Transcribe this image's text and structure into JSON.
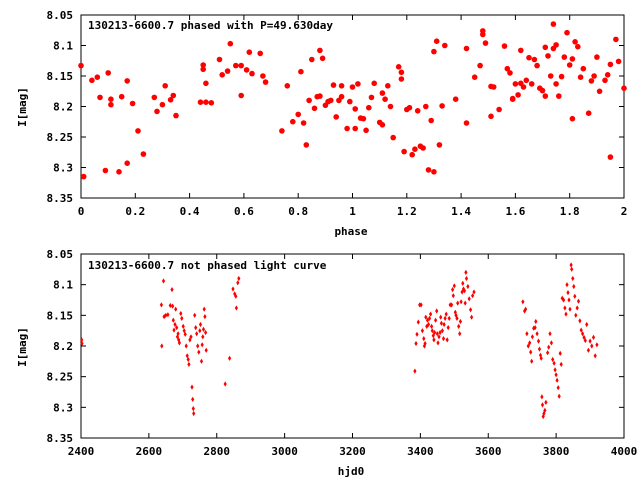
{
  "marker_color": "#ff0000",
  "chart_data": [
    {
      "type": "scatter",
      "title": "130213-6600.7 phased with P=49.630day",
      "xlabel": "phase",
      "ylabel": "I[mag]",
      "xlim": [
        0,
        2
      ],
      "ylim": [
        8.35,
        8.05
      ],
      "y_inverted": true,
      "xticks": [
        "0",
        "0.2",
        "0.4",
        "0.6",
        "0.8",
        "1",
        "1.2",
        "1.4",
        "1.6",
        "1.8",
        "2"
      ],
      "yticks": [
        "8.05",
        "8.1",
        "8.15",
        "8.2",
        "8.25",
        "8.3",
        "8.35"
      ],
      "marker": "filled-circle",
      "grid": false,
      "points": [
        [
          0.0,
          8.133
        ],
        [
          0.01,
          8.315
        ],
        [
          0.04,
          8.157
        ],
        [
          0.06,
          8.152
        ],
        [
          0.07,
          8.185
        ],
        [
          0.09,
          8.305
        ],
        [
          0.1,
          8.145
        ],
        [
          0.11,
          8.188
        ],
        [
          0.11,
          8.197
        ],
        [
          0.14,
          8.307
        ],
        [
          0.15,
          8.184
        ],
        [
          0.17,
          8.158
        ],
        [
          0.17,
          8.293
        ],
        [
          0.19,
          8.195
        ],
        [
          0.21,
          8.24
        ],
        [
          0.23,
          8.278
        ],
        [
          0.27,
          8.185
        ],
        [
          0.28,
          8.208
        ],
        [
          0.3,
          8.197
        ],
        [
          0.31,
          8.166
        ],
        [
          0.33,
          8.189
        ],
        [
          0.34,
          8.182
        ],
        [
          0.35,
          8.215
        ],
        [
          0.44,
          8.193
        ],
        [
          0.45,
          8.139
        ],
        [
          0.45,
          8.132
        ],
        [
          0.46,
          8.162
        ],
        [
          0.46,
          8.193
        ],
        [
          0.48,
          8.194
        ],
        [
          0.51,
          8.123
        ],
        [
          0.52,
          8.148
        ],
        [
          0.54,
          8.142
        ],
        [
          0.55,
          8.097
        ],
        [
          0.57,
          8.133
        ],
        [
          0.59,
          8.133
        ],
        [
          0.59,
          8.182
        ],
        [
          0.61,
          8.14
        ],
        [
          0.62,
          8.111
        ],
        [
          0.63,
          8.146
        ],
        [
          0.66,
          8.113
        ],
        [
          0.67,
          8.15
        ],
        [
          0.68,
          8.16
        ],
        [
          0.74,
          8.24
        ],
        [
          0.76,
          8.166
        ],
        [
          0.78,
          8.225
        ],
        [
          0.8,
          8.213
        ],
        [
          0.81,
          8.143
        ],
        [
          0.82,
          8.227
        ],
        [
          0.83,
          8.263
        ],
        [
          0.84,
          8.19
        ],
        [
          0.85,
          8.123
        ],
        [
          0.86,
          8.203
        ],
        [
          0.87,
          8.184
        ],
        [
          0.88,
          8.183
        ],
        [
          0.88,
          8.108
        ],
        [
          0.89,
          8.121
        ],
        [
          0.9,
          8.198
        ],
        [
          0.91,
          8.192
        ],
        [
          0.92,
          8.19
        ],
        [
          0.93,
          8.165
        ],
        [
          0.94,
          8.217
        ],
        [
          0.95,
          8.19
        ],
        [
          0.96,
          8.184
        ],
        [
          0.96,
          8.166
        ],
        [
          0.98,
          8.236
        ],
        [
          0.99,
          8.192
        ],
        [
          1.0,
          8.168
        ],
        [
          1.01,
          8.204
        ],
        [
          1.01,
          8.236
        ],
        [
          1.02,
          8.163
        ],
        [
          1.03,
          8.219
        ],
        [
          1.04,
          8.22
        ],
        [
          1.05,
          8.239
        ],
        [
          1.06,
          8.202
        ],
        [
          1.07,
          8.185
        ],
        [
          1.08,
          8.162
        ],
        [
          1.1,
          8.226
        ],
        [
          1.11,
          8.23
        ],
        [
          1.11,
          8.178
        ],
        [
          1.12,
          8.188
        ],
        [
          1.13,
          8.166
        ],
        [
          1.14,
          8.2
        ],
        [
          1.15,
          8.251
        ],
        [
          1.17,
          8.135
        ],
        [
          1.18,
          8.155
        ],
        [
          1.18,
          8.144
        ],
        [
          1.19,
          8.274
        ],
        [
          1.2,
          8.205
        ],
        [
          1.21,
          8.202
        ],
        [
          1.22,
          8.279
        ],
        [
          1.23,
          8.27
        ],
        [
          1.24,
          8.207
        ],
        [
          1.25,
          8.265
        ],
        [
          1.26,
          8.268
        ],
        [
          1.27,
          8.2
        ],
        [
          1.28,
          8.304
        ],
        [
          1.29,
          8.223
        ],
        [
          1.3,
          8.307
        ],
        [
          1.3,
          8.11
        ],
        [
          1.31,
          8.093
        ],
        [
          1.32,
          8.263
        ],
        [
          1.33,
          8.199
        ],
        [
          1.34,
          8.1
        ],
        [
          1.38,
          8.188
        ],
        [
          1.42,
          8.105
        ],
        [
          1.42,
          8.227
        ],
        [
          1.45,
          8.152
        ],
        [
          1.47,
          8.133
        ],
        [
          1.48,
          8.076
        ],
        [
          1.48,
          8.082
        ],
        [
          1.49,
          8.096
        ],
        [
          1.51,
          8.216
        ],
        [
          1.51,
          8.167
        ],
        [
          1.52,
          8.168
        ],
        [
          1.54,
          8.205
        ],
        [
          1.56,
          8.101
        ],
        [
          1.57,
          8.138
        ],
        [
          1.58,
          8.145
        ],
        [
          1.59,
          8.187
        ],
        [
          1.59,
          8.188
        ],
        [
          1.6,
          8.163
        ],
        [
          1.61,
          8.181
        ],
        [
          1.62,
          8.162
        ],
        [
          1.62,
          8.108
        ],
        [
          1.63,
          8.168
        ],
        [
          1.64,
          8.157
        ],
        [
          1.65,
          8.12
        ],
        [
          1.66,
          8.163
        ],
        [
          1.67,
          8.123
        ],
        [
          1.68,
          8.133
        ],
        [
          1.69,
          8.17
        ],
        [
          1.7,
          8.174
        ],
        [
          1.71,
          8.183
        ],
        [
          1.71,
          8.103
        ],
        [
          1.72,
          8.117
        ],
        [
          1.73,
          8.15
        ],
        [
          1.74,
          8.105
        ],
        [
          1.74,
          8.065
        ],
        [
          1.75,
          8.099
        ],
        [
          1.75,
          8.163
        ],
        [
          1.76,
          8.183
        ],
        [
          1.77,
          8.151
        ],
        [
          1.78,
          8.119
        ],
        [
          1.79,
          8.079
        ],
        [
          1.8,
          8.132
        ],
        [
          1.81,
          8.22
        ],
        [
          1.81,
          8.122
        ],
        [
          1.82,
          8.094
        ],
        [
          1.83,
          8.102
        ],
        [
          1.84,
          8.152
        ],
        [
          1.85,
          8.138
        ],
        [
          1.87,
          8.211
        ],
        [
          1.88,
          8.158
        ],
        [
          1.89,
          8.15
        ],
        [
          1.9,
          8.119
        ],
        [
          1.91,
          8.175
        ],
        [
          1.93,
          8.157
        ],
        [
          1.94,
          8.148
        ],
        [
          1.95,
          8.131
        ],
        [
          1.95,
          8.283
        ],
        [
          1.97,
          8.09
        ],
        [
          1.98,
          8.126
        ],
        [
          2.0,
          8.17
        ]
      ]
    },
    {
      "type": "scatter",
      "title": "130213-6600.7 not phased light curve",
      "xlabel": "hjd0",
      "ylabel": "I[mag]",
      "xlim": [
        2400,
        4000
      ],
      "ylim": [
        8.35,
        8.05
      ],
      "y_inverted": true,
      "xticks": [
        "2400",
        "2600",
        "2800",
        "3000",
        "3200",
        "3400",
        "3600",
        "3800",
        "4000"
      ],
      "yticks": [
        "8.05",
        "8.1",
        "8.15",
        "8.2",
        "8.25",
        "8.3",
        "8.35"
      ],
      "marker": "small-diamond",
      "grid": false,
      "points": [
        [
          2402,
          8.19
        ],
        [
          2403,
          8.196
        ],
        [
          2637,
          8.133
        ],
        [
          2638,
          8.2
        ],
        [
          2643,
          8.094
        ],
        [
          2645,
          8.152
        ],
        [
          2650,
          8.15
        ],
        [
          2656,
          8.149
        ],
        [
          2663,
          8.134
        ],
        [
          2668,
          8.108
        ],
        [
          2670,
          8.135
        ],
        [
          2672,
          8.158
        ],
        [
          2674,
          8.174
        ],
        [
          2677,
          8.165
        ],
        [
          2679,
          8.14
        ],
        [
          2682,
          8.17
        ],
        [
          2684,
          8.185
        ],
        [
          2686,
          8.18
        ],
        [
          2688,
          8.19
        ],
        [
          2690,
          8.195
        ],
        [
          2694,
          8.147
        ],
        [
          2697,
          8.155
        ],
        [
          2701,
          8.168
        ],
        [
          2704,
          8.175
        ],
        [
          2707,
          8.181
        ],
        [
          2710,
          8.2
        ],
        [
          2713,
          8.216
        ],
        [
          2716,
          8.222
        ],
        [
          2718,
          8.23
        ],
        [
          2721,
          8.19
        ],
        [
          2724,
          8.185
        ],
        [
          2727,
          8.267
        ],
        [
          2729,
          8.287
        ],
        [
          2731,
          8.302
        ],
        [
          2732,
          8.31
        ],
        [
          2735,
          8.15
        ],
        [
          2738,
          8.17
        ],
        [
          2741,
          8.18
        ],
        [
          2744,
          8.2
        ],
        [
          2747,
          8.21
        ],
        [
          2750,
          8.175
        ],
        [
          2752,
          8.165
        ],
        [
          2755,
          8.225
        ],
        [
          2757,
          8.198
        ],
        [
          2759,
          8.185
        ],
        [
          2761,
          8.173
        ],
        [
          2763,
          8.14
        ],
        [
          2765,
          8.152
        ],
        [
          2767,
          8.178
        ],
        [
          2769,
          8.207
        ],
        [
          2825,
          8.262
        ],
        [
          2838,
          8.22
        ],
        [
          2848,
          8.107
        ],
        [
          2853,
          8.115
        ],
        [
          2856,
          8.119
        ],
        [
          2858,
          8.138
        ],
        [
          2862,
          8.097
        ],
        [
          2865,
          8.09
        ],
        [
          3384,
          8.241
        ],
        [
          3387,
          8.196
        ],
        [
          3390,
          8.181
        ],
        [
          3394,
          8.161
        ],
        [
          3398,
          8.133
        ],
        [
          3402,
          8.133
        ],
        [
          3406,
          8.175
        ],
        [
          3410,
          8.188
        ],
        [
          3412,
          8.2
        ],
        [
          3414,
          8.196
        ],
        [
          3416,
          8.153
        ],
        [
          3419,
          8.168
        ],
        [
          3421,
          8.158
        ],
        [
          3424,
          8.165
        ],
        [
          3427,
          8.155
        ],
        [
          3430,
          8.148
        ],
        [
          3433,
          8.168
        ],
        [
          3435,
          8.175
        ],
        [
          3438,
          8.183
        ],
        [
          3440,
          8.19
        ],
        [
          3442,
          8.178
        ],
        [
          3445,
          8.158
        ],
        [
          3448,
          8.143
        ],
        [
          3450,
          8.18
        ],
        [
          3452,
          8.195
        ],
        [
          3455,
          8.185
        ],
        [
          3458,
          8.178
        ],
        [
          3460,
          8.153
        ],
        [
          3462,
          8.163
        ],
        [
          3465,
          8.175
        ],
        [
          3468,
          8.188
        ],
        [
          3470,
          8.165
        ],
        [
          3473,
          8.155
        ],
        [
          3476,
          8.148
        ],
        [
          3479,
          8.19
        ],
        [
          3482,
          8.17
        ],
        [
          3485,
          8.155
        ],
        [
          3488,
          8.133
        ],
        [
          3492,
          8.133
        ],
        [
          3495,
          8.108
        ],
        [
          3497,
          8.118
        ],
        [
          3500,
          8.102
        ],
        [
          3503,
          8.145
        ],
        [
          3505,
          8.15
        ],
        [
          3508,
          8.155
        ],
        [
          3510,
          8.13
        ],
        [
          3513,
          8.168
        ],
        [
          3516,
          8.18
        ],
        [
          3518,
          8.16
        ],
        [
          3520,
          8.128
        ],
        [
          3523,
          8.112
        ],
        [
          3525,
          8.098
        ],
        [
          3527,
          8.107
        ],
        [
          3530,
          8.11
        ],
        [
          3532,
          8.13
        ],
        [
          3534,
          8.08
        ],
        [
          3536,
          8.09
        ],
        [
          3540,
          8.103
        ],
        [
          3544,
          8.123
        ],
        [
          3548,
          8.141
        ],
        [
          3551,
          8.153
        ],
        [
          3554,
          8.118
        ],
        [
          3558,
          8.112
        ],
        [
          3702,
          8.128
        ],
        [
          3707,
          8.143
        ],
        [
          3710,
          8.14
        ],
        [
          3714,
          8.18
        ],
        [
          3718,
          8.2
        ],
        [
          3722,
          8.195
        ],
        [
          3725,
          8.21
        ],
        [
          3728,
          8.225
        ],
        [
          3730,
          8.185
        ],
        [
          3734,
          8.171
        ],
        [
          3738,
          8.17
        ],
        [
          3740,
          8.16
        ],
        [
          3744,
          8.18
        ],
        [
          3748,
          8.192
        ],
        [
          3751,
          8.205
        ],
        [
          3754,
          8.215
        ],
        [
          3756,
          8.22
        ],
        [
          3758,
          8.283
        ],
        [
          3760,
          8.296
        ],
        [
          3762,
          8.315
        ],
        [
          3764,
          8.31
        ],
        [
          3767,
          8.305
        ],
        [
          3770,
          8.292
        ],
        [
          3775,
          8.211
        ],
        [
          3778,
          8.202
        ],
        [
          3782,
          8.18
        ],
        [
          3786,
          8.195
        ],
        [
          3790,
          8.222
        ],
        [
          3794,
          8.228
        ],
        [
          3797,
          8.239
        ],
        [
          3800,
          8.247
        ],
        [
          3803,
          8.256
        ],
        [
          3806,
          8.268
        ],
        [
          3809,
          8.282
        ],
        [
          3812,
          8.212
        ],
        [
          3815,
          8.23
        ],
        [
          3818,
          8.122
        ],
        [
          3822,
          8.125
        ],
        [
          3826,
          8.138
        ],
        [
          3829,
          8.148
        ],
        [
          3832,
          8.1
        ],
        [
          3835,
          8.113
        ],
        [
          3838,
          8.125
        ],
        [
          3841,
          8.14
        ],
        [
          3844,
          8.068
        ],
        [
          3846,
          8.075
        ],
        [
          3849,
          8.09
        ],
        [
          3852,
          8.103
        ],
        [
          3855,
          8.119
        ],
        [
          3858,
          8.15
        ],
        [
          3862,
          8.138
        ],
        [
          3866,
          8.127
        ],
        [
          3870,
          8.159
        ],
        [
          3874,
          8.174
        ],
        [
          3878,
          8.18
        ],
        [
          3882,
          8.186
        ],
        [
          3886,
          8.191
        ],
        [
          3890,
          8.165
        ],
        [
          3895,
          8.207
        ],
        [
          3900,
          8.192
        ],
        [
          3905,
          8.2
        ],
        [
          3910,
          8.186
        ],
        [
          3915,
          8.216
        ],
        [
          3920,
          8.198
        ]
      ]
    }
  ]
}
